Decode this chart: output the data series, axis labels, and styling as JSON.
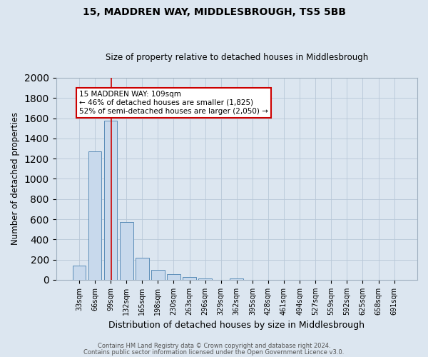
{
  "title": "15, MADDREN WAY, MIDDLESBROUGH, TS5 5BB",
  "subtitle": "Size of property relative to detached houses in Middlesbrough",
  "xlabel": "Distribution of detached houses by size in Middlesbrough",
  "ylabel": "Number of detached properties",
  "footnote1": "Contains HM Land Registry data © Crown copyright and database right 2024.",
  "footnote2": "Contains public sector information licensed under the Open Government Licence v3.0.",
  "bar_labels": [
    "33sqm",
    "66sqm",
    "99sqm",
    "132sqm",
    "165sqm",
    "198sqm",
    "230sqm",
    "263sqm",
    "296sqm",
    "329sqm",
    "362sqm",
    "395sqm",
    "428sqm",
    "461sqm",
    "494sqm",
    "527sqm",
    "559sqm",
    "592sqm",
    "625sqm",
    "658sqm",
    "691sqm"
  ],
  "bar_values": [
    140,
    1270,
    1575,
    570,
    220,
    100,
    55,
    25,
    15,
    0,
    15,
    0,
    0,
    0,
    0,
    0,
    0,
    0,
    0,
    0,
    0
  ],
  "bar_color": "#c8d9ec",
  "bar_edge_color": "#5b8db8",
  "vline_x_idx": 2,
  "vline_color": "#cc0000",
  "ylim": [
    0,
    2000
  ],
  "yticks": [
    0,
    200,
    400,
    600,
    800,
    1000,
    1200,
    1400,
    1600,
    1800,
    2000
  ],
  "annotation_line1": "15 MADDREN WAY: 109sqm",
  "annotation_line2": "← 46% of detached houses are smaller (1,825)",
  "annotation_line3": "52% of semi-detached houses are larger (2,050) →",
  "annotation_box_color": "#ffffff",
  "annotation_box_edge": "#cc0000",
  "grid_color": "#b8c8d8",
  "bg_color": "#dce6f0",
  "title_fontsize": 10,
  "subtitle_fontsize": 8.5,
  "xlabel_fontsize": 9,
  "ylabel_fontsize": 8.5,
  "tick_fontsize": 7,
  "annot_fontsize": 7.5,
  "footnote_fontsize": 6
}
